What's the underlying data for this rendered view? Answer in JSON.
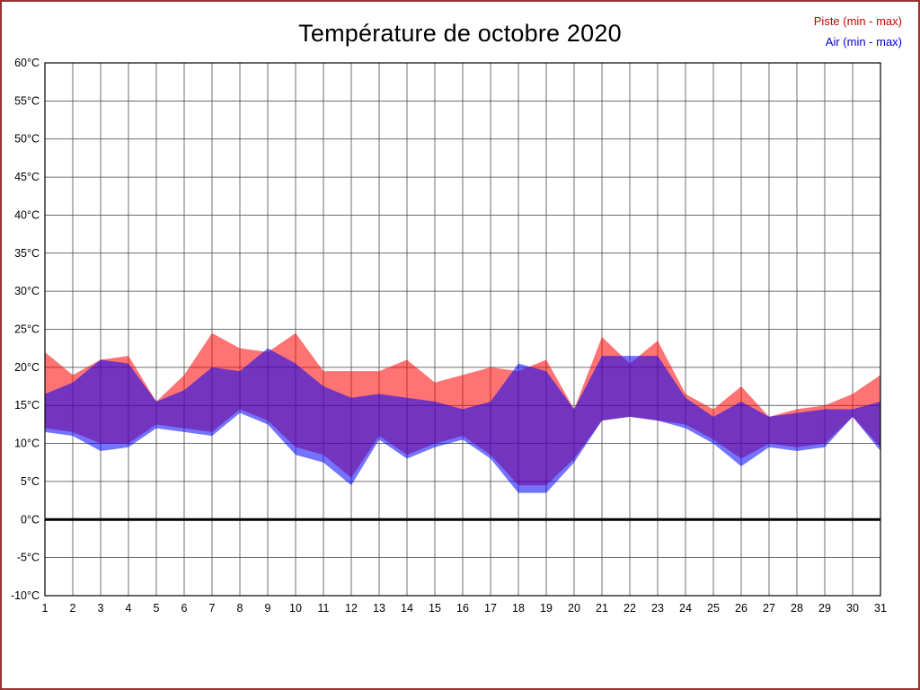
{
  "title": "Température de octobre 2020",
  "legend": {
    "items": [
      {
        "label": "Piste (min - max)",
        "color": "#cc0000"
      },
      {
        "label": "Air (min - max)",
        "color": "#0000cc"
      }
    ]
  },
  "colors": {
    "piste_fill": "rgba(255,0,0,0.55)",
    "air_fill": "rgba(0,0,255,0.55)",
    "grid": "#3f3f3f",
    "axis": "#000000",
    "zero_line": "#000000",
    "page_border": "#993333"
  },
  "chart_data": {
    "type": "area",
    "title": "Température de octobre 2020",
    "xlabel": "",
    "ylabel": "",
    "x": [
      1,
      2,
      3,
      4,
      5,
      6,
      7,
      8,
      9,
      10,
      11,
      12,
      13,
      14,
      15,
      16,
      17,
      18,
      19,
      20,
      21,
      22,
      23,
      24,
      25,
      26,
      27,
      28,
      29,
      30,
      31
    ],
    "x_tick_labels": [
      "1",
      "2",
      "3",
      "4",
      "5",
      "6",
      "7",
      "8",
      "9",
      "10",
      "11",
      "12",
      "13",
      "14",
      "15",
      "16",
      "17",
      "18",
      "19",
      "20",
      "21",
      "22",
      "23",
      "24",
      "25",
      "26",
      "27",
      "28",
      "29",
      "30",
      "31"
    ],
    "y_tick_labels": [
      "60°C",
      "55°C",
      "50°C",
      "45°C",
      "40°C",
      "35°C",
      "30°C",
      "25°C",
      "20°C",
      "15°C",
      "10°C",
      "5°C",
      "0°C",
      "-5°C",
      "-10°C"
    ],
    "ylim": [
      -10,
      60
    ],
    "ytick_step": 5,
    "grid": true,
    "zero_line": true,
    "legend_position": "top-right",
    "series": [
      {
        "name": "Piste",
        "min": [
          12,
          11.5,
          10,
          10,
          12.5,
          12,
          11.5,
          14.5,
          13,
          9.5,
          8.5,
          5.5,
          11,
          8.5,
          10,
          11,
          8.5,
          4.5,
          4.5,
          8,
          13,
          13.5,
          13,
          12.5,
          10.5,
          8,
          10,
          9.5,
          10,
          13.5,
          9.5
        ],
        "max": [
          22,
          19,
          21,
          21.5,
          15.5,
          19,
          24.5,
          22.5,
          22,
          24.5,
          19.5,
          19.5,
          19.5,
          21,
          18,
          19,
          20,
          19.5,
          21,
          14.5,
          24,
          20.5,
          23.5,
          16.5,
          14.5,
          17.5,
          13.5,
          14.5,
          15,
          16.5,
          19
        ]
      },
      {
        "name": "Air",
        "min": [
          11.5,
          11,
          9,
          9.5,
          12,
          11.5,
          11,
          14,
          12.5,
          8.5,
          7.5,
          4.5,
          10.5,
          8,
          9.5,
          10.5,
          8,
          3.5,
          3.5,
          7.5,
          13,
          13.5,
          13,
          12,
          10,
          7,
          9.5,
          9,
          9.5,
          13.5,
          9
        ],
        "max": [
          16.5,
          18,
          21,
          20.5,
          15.5,
          17,
          20,
          19.5,
          22.5,
          20.5,
          17.5,
          16,
          16.5,
          16,
          15.5,
          14.5,
          15.5,
          20.5,
          19.5,
          14.5,
          21.5,
          21.5,
          21.5,
          16,
          13.5,
          15.5,
          13.5,
          14,
          14.5,
          14.5,
          15.5
        ]
      }
    ]
  }
}
